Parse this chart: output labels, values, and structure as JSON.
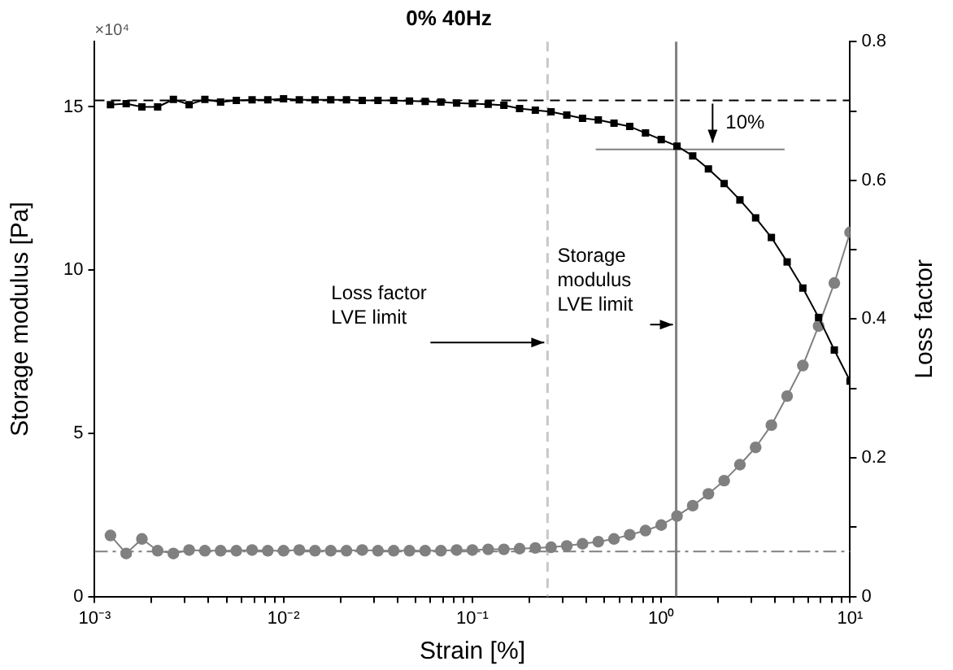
{
  "chart_data": {
    "type": "line",
    "title": "0% 40Hz",
    "xlabel": "Strain [%]",
    "ylabel": "Storage modulus [Pa]",
    "y2label": "Loss factor",
    "log": "x",
    "grid": false,
    "legend": false,
    "x": [
      0.001212,
      0.001468,
      0.001778,
      0.002154,
      0.00261,
      0.003162,
      0.003831,
      0.004642,
      0.005623,
      0.006813,
      0.008254,
      0.01,
      0.01212,
      0.01468,
      0.01778,
      0.02154,
      0.0261,
      0.03162,
      0.03831,
      0.04642,
      0.05623,
      0.06813,
      0.08254,
      0.1,
      0.1212,
      0.1468,
      0.1778,
      0.2154,
      0.261,
      0.3162,
      0.3831,
      0.4642,
      0.5623,
      0.6813,
      0.8254,
      1,
      1.212,
      1.468,
      1.778,
      2.154,
      2.61,
      3.162,
      3.831,
      4.642,
      5.623,
      6.813,
      8.254,
      10
    ],
    "series": [
      {
        "axis": "y",
        "color": "#000000",
        "marker": "square",
        "values": [
          15.07,
          15.1,
          15.0,
          15.0,
          15.23,
          15.07,
          15.23,
          15.15,
          15.2,
          15.22,
          15.22,
          15.25,
          15.22,
          15.22,
          15.22,
          15.22,
          15.2,
          15.2,
          15.2,
          15.18,
          15.17,
          15.15,
          15.12,
          15.1,
          15.08,
          15.05,
          14.95,
          14.9,
          14.85,
          14.75,
          14.65,
          14.6,
          14.5,
          14.4,
          14.2,
          14.0,
          13.8,
          13.5,
          13.1,
          12.65,
          12.15,
          11.6,
          11.0,
          10.25,
          9.45,
          8.55,
          7.55,
          6.6
        ]
      },
      {
        "axis": "y2",
        "color": "#808080",
        "marker": "circle",
        "values": [
          0.088,
          0.062,
          0.083,
          0.066,
          0.062,
          0.067,
          0.066,
          0.066,
          0.066,
          0.067,
          0.066,
          0.066,
          0.067,
          0.066,
          0.066,
          0.066,
          0.067,
          0.066,
          0.066,
          0.066,
          0.066,
          0.066,
          0.067,
          0.067,
          0.068,
          0.068,
          0.069,
          0.07,
          0.071,
          0.073,
          0.076,
          0.079,
          0.083,
          0.089,
          0.095,
          0.103,
          0.116,
          0.131,
          0.148,
          0.167,
          0.19,
          0.215,
          0.247,
          0.289,
          0.333,
          0.39,
          0.452,
          0.525
        ]
      },
      {
        "axis": "y",
        "color": "#808080",
        "marker": "none",
        "x": [
          0.45,
          4.5
        ],
        "values": [
          13.7,
          13.7
        ]
      }
    ],
    "xlim": [
      0.001,
      10
    ],
    "xticks": [
      {
        "value": 0.001,
        "label": "10⁻³"
      },
      {
        "value": 0.002,
        "label": null
      },
      {
        "value": 0.003,
        "label": null
      },
      {
        "value": 0.004,
        "label": null
      },
      {
        "value": 0.005,
        "label": null
      },
      {
        "value": 0.006,
        "label": null
      },
      {
        "value": 0.007,
        "label": null
      },
      {
        "value": 0.008,
        "label": null
      },
      {
        "value": 0.009,
        "label": null
      },
      {
        "value": 0.01,
        "label": "10⁻²"
      },
      {
        "value": 0.02,
        "label": null
      },
      {
        "value": 0.03,
        "label": null
      },
      {
        "value": 0.04,
        "label": null
      },
      {
        "value": 0.05,
        "label": null
      },
      {
        "value": 0.06,
        "label": null
      },
      {
        "value": 0.07,
        "label": null
      },
      {
        "value": 0.08,
        "label": null
      },
      {
        "value": 0.09,
        "label": null
      },
      {
        "value": 0.1,
        "label": "10⁻¹"
      },
      {
        "value": 0.2,
        "label": null
      },
      {
        "value": 0.3,
        "label": null
      },
      {
        "value": 0.4,
        "label": null
      },
      {
        "value": 0.5,
        "label": null
      },
      {
        "value": 0.6,
        "label": null
      },
      {
        "value": 0.7,
        "label": null
      },
      {
        "value": 0.8,
        "label": null
      },
      {
        "value": 0.9,
        "label": null
      },
      {
        "value": 1,
        "label": "10⁰"
      },
      {
        "value": 2,
        "label": null
      },
      {
        "value": 3,
        "label": null
      },
      {
        "value": 4,
        "label": null
      },
      {
        "value": 5,
        "label": null
      },
      {
        "value": 6,
        "label": null
      },
      {
        "value": 7,
        "label": null
      },
      {
        "value": 8,
        "label": null
      },
      {
        "value": 9,
        "label": null
      },
      {
        "value": 10,
        "label": "10¹"
      }
    ],
    "ylim": [
      0,
      17
    ],
    "yticks": [
      0,
      5,
      10,
      15
    ],
    "y2lim": [
      0,
      0.8
    ],
    "y2ticks": [
      0,
      {
        "value": 0.1,
        "label": null
      },
      0.2,
      {
        "value": 0.3,
        "label": null
      },
      0.4,
      {
        "value": 0.5,
        "label": null
      },
      0.6,
      {
        "value": 0.7,
        "label": null
      },
      0.8
    ],
    "ref_lines": [
      {
        "axis": "y",
        "value": 15.2,
        "color": "#000000",
        "line_style": "dashed"
      },
      {
        "axis": "y2",
        "value": 0.065,
        "color": "#808080",
        "line_style": "dashdot"
      },
      {
        "axis": "x",
        "value": 0.25,
        "label": "Loss factor LVE limit",
        "color": "#c8c8c8",
        "line_style": "dashed"
      },
      {
        "axis": "x",
        "value": 1.2,
        "label": "Storage modulus LVE limit",
        "color": "#808080",
        "line_style": "solid"
      }
    ],
    "annotations": [
      "×10⁴",
      "10%"
    ]
  }
}
